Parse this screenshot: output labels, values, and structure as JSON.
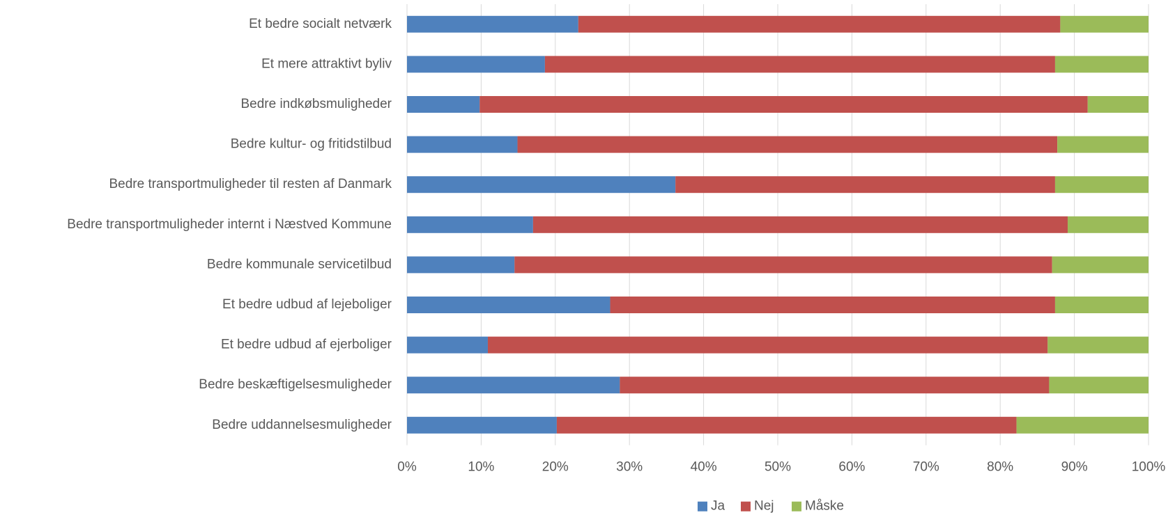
{
  "chart_data": {
    "type": "stacked-bar-horizontal",
    "categories": [
      "Et bedre socialt netværk",
      "Et mere attraktivt byliv",
      "Bedre indkøbsmuligheder",
      "Bedre kultur- og fritidstilbud",
      "Bedre transportmuligheder til resten af Danmark",
      "Bedre transportmuligheder internt i Næstved Kommune",
      "Bedre kommunale servicetilbud",
      "Et bedre udbud af lejeboliger",
      "Et bedre udbud af ejerboliger",
      "Bedre beskæftigelsesmuligheder",
      "Bedre uddannelsesmuligheder"
    ],
    "series": [
      {
        "name": "Ja",
        "color": "#4f81bd",
        "values": [
          23.1,
          18.6,
          9.8,
          14.9,
          36.2,
          17.0,
          14.5,
          27.4,
          10.9,
          28.7,
          20.2
        ]
      },
      {
        "name": "Nej",
        "color": "#c0504d",
        "values": [
          65.0,
          68.8,
          82.0,
          72.8,
          51.2,
          72.1,
          72.5,
          60.0,
          75.5,
          57.9,
          62.0
        ]
      },
      {
        "name": "Måske",
        "color": "#9bbb59",
        "values": [
          11.9,
          12.6,
          8.2,
          12.3,
          12.6,
          10.9,
          13.0,
          12.6,
          13.6,
          13.4,
          17.8
        ]
      }
    ],
    "xlim": [
      0,
      100
    ],
    "xticks": [
      {
        "value": 0,
        "label": "0%"
      },
      {
        "value": 10,
        "label": "10%"
      },
      {
        "value": 20,
        "label": "20%"
      },
      {
        "value": 30,
        "label": "30%"
      },
      {
        "value": 40,
        "label": "40%"
      },
      {
        "value": 50,
        "label": "50%"
      },
      {
        "value": 60,
        "label": "60%"
      },
      {
        "value": 70,
        "label": "70%"
      },
      {
        "value": 80,
        "label": "80%"
      },
      {
        "value": 90,
        "label": "90%"
      },
      {
        "value": 100,
        "label": "100%"
      }
    ],
    "grid": true,
    "legend": "bottom"
  }
}
